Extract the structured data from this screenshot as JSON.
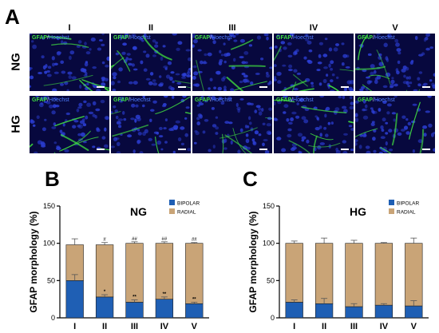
{
  "panels": {
    "a": "A",
    "b": "B",
    "c": "C"
  },
  "micrographs": {
    "columns": [
      "I",
      "II",
      "III",
      "IV",
      "V"
    ],
    "rows": [
      "NG",
      "HG"
    ],
    "stain": {
      "gfap": "GFAP",
      "separator": "/",
      "hoechst": "Hoechst"
    },
    "gfap_color": "#3fd83f",
    "nucleus_color": "#2c3fd6",
    "background_color": "#07083e"
  },
  "colors": {
    "bipolar": "#1f5fb4",
    "radial": "#c9a477",
    "error_bar": "#555555"
  },
  "chart_data": [
    {
      "type": "bar",
      "stacked": true,
      "title": "NG",
      "ylabel": "GFAP morphology (%)",
      "categories": [
        "I",
        "II",
        "III",
        "IV",
        "V"
      ],
      "ylim": [
        0,
        150
      ],
      "yticks": [
        0,
        50,
        100,
        150
      ],
      "legend": {
        "position": "top-right",
        "entries": [
          "BIPOLAR",
          "RADIAL"
        ]
      },
      "series": [
        {
          "name": "BIPOLAR",
          "values": [
            50,
            28,
            21,
            25,
            19
          ],
          "errors": [
            8,
            3,
            3,
            3,
            2
          ]
        },
        {
          "name": "RADIAL",
          "values": [
            48,
            70,
            79,
            75,
            81
          ],
          "errors": [
            8,
            3,
            2,
            2,
            1
          ]
        }
      ],
      "annotations": {
        "bipolar": [
          "",
          "*",
          "**",
          "**",
          "**"
        ],
        "top": [
          "",
          "#",
          "##",
          "##",
          "##"
        ]
      }
    },
    {
      "type": "bar",
      "stacked": true,
      "title": "HG",
      "ylabel": "GFAP morphology (%)",
      "categories": [
        "I",
        "II",
        "III",
        "IV",
        "V"
      ],
      "ylim": [
        0,
        150
      ],
      "yticks": [
        0,
        50,
        100,
        150
      ],
      "legend": {
        "position": "top-right",
        "entries": [
          "BIPOLAR",
          "RADIAL"
        ]
      },
      "series": [
        {
          "name": "BIPOLAR",
          "values": [
            21,
            19,
            15,
            17,
            16
          ],
          "errors": [
            3,
            7,
            4,
            2,
            7
          ]
        },
        {
          "name": "RADIAL",
          "values": [
            79,
            81,
            85,
            83,
            84
          ],
          "errors": [
            3,
            7,
            4,
            1,
            7
          ]
        }
      ],
      "annotations": {
        "bipolar": [
          "",
          "",
          "",
          "",
          ""
        ],
        "top": [
          "",
          "",
          "",
          "",
          ""
        ]
      }
    }
  ]
}
